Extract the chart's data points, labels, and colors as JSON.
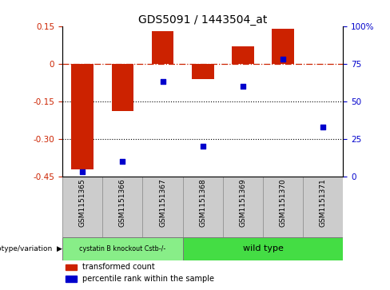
{
  "title": "GDS5091 / 1443504_at",
  "samples": [
    "GSM1151365",
    "GSM1151366",
    "GSM1151367",
    "GSM1151368",
    "GSM1151369",
    "GSM1151370",
    "GSM1151371"
  ],
  "bar_values": [
    -0.42,
    -0.19,
    0.13,
    -0.06,
    0.07,
    0.14,
    0.0
  ],
  "scatter_values": [
    3,
    10,
    63,
    20,
    60,
    78,
    33
  ],
  "ylim_left": [
    -0.45,
    0.15
  ],
  "ylim_right": [
    0,
    100
  ],
  "yticks_left": [
    0.15,
    0,
    -0.15,
    -0.3,
    -0.45
  ],
  "yticks_left_labels": [
    "0.15",
    "0",
    "-0.15",
    "-0.30",
    "-0.45"
  ],
  "yticks_right": [
    100,
    75,
    50,
    25,
    0
  ],
  "yticks_right_labels": [
    "100%",
    "75",
    "50",
    "25",
    "0"
  ],
  "bar_color": "#cc2200",
  "scatter_color": "#0000cc",
  "hline_y": 0,
  "dotted_lines": [
    -0.15,
    -0.3
  ],
  "group1_label": "cystatin B knockout Cstb-/-",
  "group2_label": "wild type",
  "group1_count": 3,
  "group2_count": 4,
  "group1_color": "#88ee88",
  "group2_color": "#44dd44",
  "genotype_label": "genotype/variation",
  "legend_bar_label": "transformed count",
  "legend_scatter_label": "percentile rank within the sample",
  "bar_width": 0.55,
  "sample_box_color": "#cccccc",
  "figsize": [
    4.88,
    3.63
  ],
  "dpi": 100
}
